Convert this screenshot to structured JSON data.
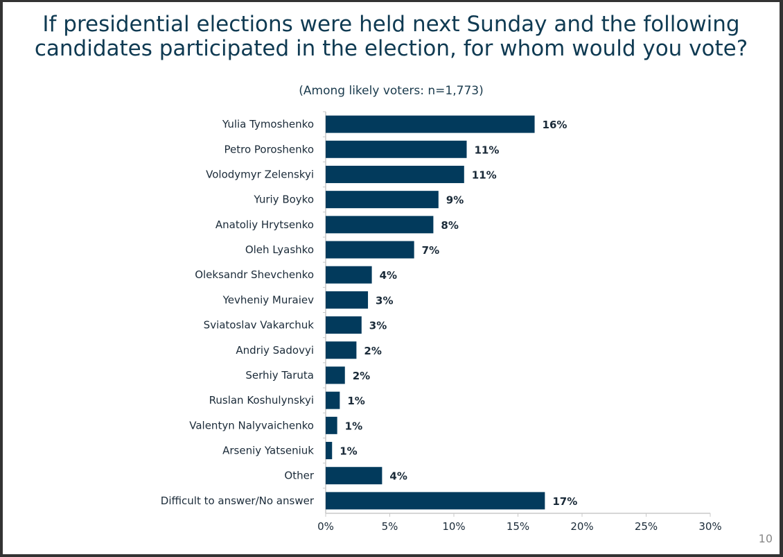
{
  "chart_data": {
    "type": "bar",
    "orientation": "horizontal",
    "title": "If presidential elections were held next Sunday and the following candidates participated in the election, for whom would you vote?",
    "subtitle": "(Among likely voters: n=1,773)",
    "categories": [
      "Yulia Tymoshenko",
      "Petro Poroshenko",
      "Volodymyr Zelenskyi",
      "Yuriy Boyko",
      "Anatoliy Hrytsenko",
      "Oleh Lyashko",
      "Oleksandr Shevchenko",
      "Yevheniy Muraiev",
      "Sviatoslav Vakarchuk",
      "Andriy Sadovyi",
      "Serhiy Taruta",
      "Ruslan Koshulynskyi",
      "Valentyn Nalyvaichenko",
      "Arseniy Yatseniuk",
      "Other",
      "Difficult to answer/No answer"
    ],
    "values": [
      16.3,
      11.0,
      10.8,
      8.8,
      8.4,
      6.9,
      3.6,
      3.3,
      2.8,
      2.4,
      1.5,
      1.1,
      0.9,
      0.5,
      4.4,
      17.1
    ],
    "labels": [
      "16%",
      "11%",
      "11%",
      "9%",
      "8%",
      "7%",
      "4%",
      "3%",
      "3%",
      "2%",
      "2%",
      "1%",
      "1%",
      "1%",
      "4%",
      "17%"
    ],
    "xlim": [
      0,
      30
    ],
    "xticks": [
      "0%",
      "5%",
      "10%",
      "15%",
      "20%",
      "25%",
      "30%"
    ],
    "xtick_values": [
      0,
      5,
      10,
      15,
      20,
      25,
      30
    ],
    "xlabel": "",
    "ylabel": "",
    "grid": false,
    "bar_color": "#023a5c"
  },
  "page_number": "10"
}
